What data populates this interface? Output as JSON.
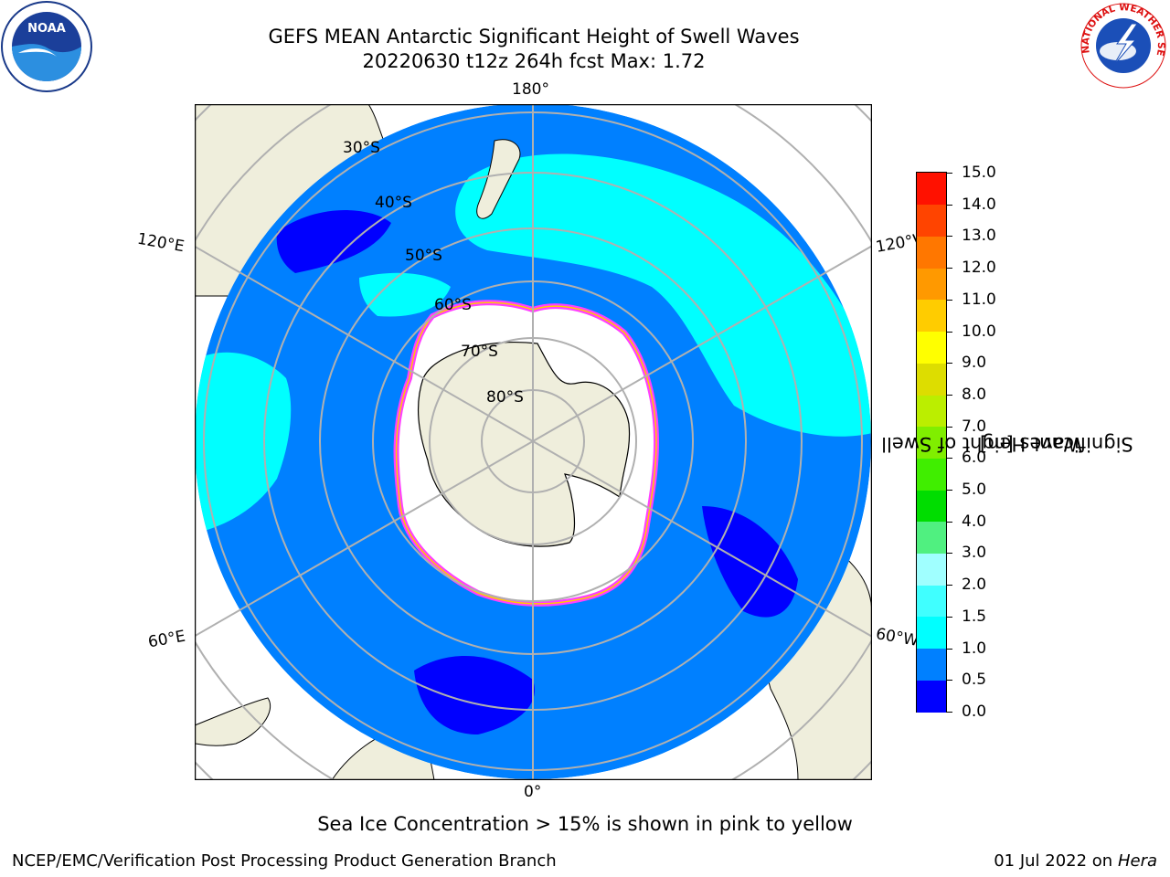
{
  "header": {
    "title_line1": "GEFS MEAN Antarctic Significant Height of Swell Waves",
    "title_line2": "20220630 t12z 264h fcst   Max: 1.72"
  },
  "map": {
    "projection": "south-polar-stereographic",
    "longitude_labels": {
      "top": "180°",
      "bottom": "0°",
      "upper_left": "120°E",
      "upper_right": "120°W",
      "lower_left": "60°E",
      "lower_right": "60°W"
    },
    "latitude_labels": [
      "30°S",
      "40°S",
      "50°S",
      "60°S",
      "70°S",
      "80°S"
    ],
    "colors": {
      "land": "#efeedc",
      "ocean_0_0.5": "#0000ff",
      "ocean_0.5_1.0": "#0080ff",
      "ocean_1.0_1.5": "#00ffff",
      "sea_ice_edge": "#ff40ff",
      "ice_interior": "#ffffff"
    }
  },
  "colorbar": {
    "title_line1": "Significant Height of Swell",
    "title_line2": "Waves [m]",
    "ticks": [
      "0.0",
      "0.5",
      "1.0",
      "1.5",
      "2.0",
      "3.0",
      "4.0",
      "5.0",
      "6.0",
      "7.0",
      "8.0",
      "9.0",
      "10.0",
      "11.0",
      "12.0",
      "13.0",
      "14.0",
      "15.0"
    ],
    "colors": [
      "#0000ff",
      "#0080ff",
      "#00ffff",
      "#40ffff",
      "#a0ffff",
      "#50f080",
      "#00dd00",
      "#40ee00",
      "#80ee00",
      "#bbee00",
      "#dddd00",
      "#ffff00",
      "#ffcc00",
      "#ff9900",
      "#ff7700",
      "#ff4400",
      "#ff1100"
    ]
  },
  "caption": "Sea Ice Concentration > 15% is shown in pink to yellow",
  "footer": {
    "left": "NCEP/EMC/Verification Post Processing Product Generation Branch",
    "right_date": "01 Jul 2022 on ",
    "right_host": "Hera"
  },
  "logos": {
    "noaa": "NOAA",
    "nws": "NATIONAL WEATHER SERVICE"
  }
}
